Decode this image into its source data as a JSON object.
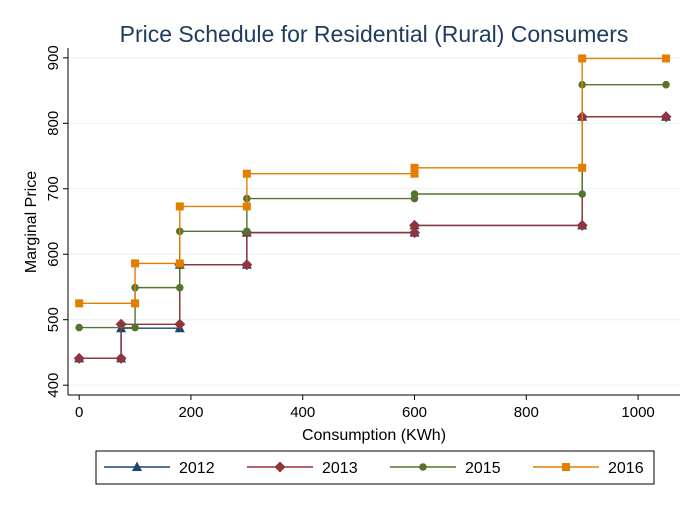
{
  "chart_data": {
    "type": "line",
    "step": true,
    "title": "Price Schedule for Residential (Rural) Consumers",
    "xlabel": "Consumption (KWh)",
    "ylabel": "Marginal Price",
    "xlim": [
      -20,
      1075
    ],
    "ylim": [
      385,
      915
    ],
    "xticks": [
      0,
      200,
      400,
      600,
      800,
      1000
    ],
    "yticks": [
      400,
      500,
      600,
      700,
      800,
      900
    ],
    "grid": "horizontal",
    "legend_position": "bottom",
    "series": [
      {
        "name": "2012",
        "color": "#1a476f",
        "marker": "triangle",
        "points": [
          {
            "x": 0,
            "y": 441
          },
          {
            "x": 75,
            "y": 441
          },
          {
            "x": 75,
            "y": 487
          },
          {
            "x": 180,
            "y": 487
          },
          {
            "x": 180,
            "y": 584
          },
          {
            "x": 300,
            "y": 584
          },
          {
            "x": 300,
            "y": 633
          },
          {
            "x": 600,
            "y": 633
          },
          {
            "x": 600,
            "y": 644
          },
          {
            "x": 900,
            "y": 644
          },
          {
            "x": 900,
            "y": 810
          },
          {
            "x": 1050,
            "y": 810
          }
        ]
      },
      {
        "name": "2013",
        "color": "#90353b",
        "marker": "diamond",
        "points": [
          {
            "x": 0,
            "y": 441
          },
          {
            "x": 75,
            "y": 441
          },
          {
            "x": 75,
            "y": 493
          },
          {
            "x": 180,
            "y": 493
          },
          {
            "x": 180,
            "y": 584
          },
          {
            "x": 300,
            "y": 584
          },
          {
            "x": 300,
            "y": 633
          },
          {
            "x": 600,
            "y": 633
          },
          {
            "x": 600,
            "y": 644
          },
          {
            "x": 900,
            "y": 644
          },
          {
            "x": 900,
            "y": 810
          },
          {
            "x": 1050,
            "y": 810
          }
        ]
      },
      {
        "name": "2015",
        "color": "#55752f",
        "marker": "circle",
        "points": [
          {
            "x": 0,
            "y": 488
          },
          {
            "x": 100,
            "y": 488
          },
          {
            "x": 100,
            "y": 549
          },
          {
            "x": 180,
            "y": 549
          },
          {
            "x": 180,
            "y": 635
          },
          {
            "x": 300,
            "y": 635
          },
          {
            "x": 300,
            "y": 685
          },
          {
            "x": 600,
            "y": 685
          },
          {
            "x": 600,
            "y": 692
          },
          {
            "x": 900,
            "y": 692
          },
          {
            "x": 900,
            "y": 859
          },
          {
            "x": 1050,
            "y": 859
          }
        ]
      },
      {
        "name": "2016",
        "color": "#e37e00",
        "marker": "square",
        "points": [
          {
            "x": 0,
            "y": 525
          },
          {
            "x": 100,
            "y": 525
          },
          {
            "x": 100,
            "y": 586
          },
          {
            "x": 180,
            "y": 586
          },
          {
            "x": 180,
            "y": 673
          },
          {
            "x": 300,
            "y": 673
          },
          {
            "x": 300,
            "y": 723
          },
          {
            "x": 600,
            "y": 723
          },
          {
            "x": 600,
            "y": 732
          },
          {
            "x": 900,
            "y": 732
          },
          {
            "x": 900,
            "y": 899
          },
          {
            "x": 1050,
            "y": 899
          }
        ]
      }
    ]
  }
}
